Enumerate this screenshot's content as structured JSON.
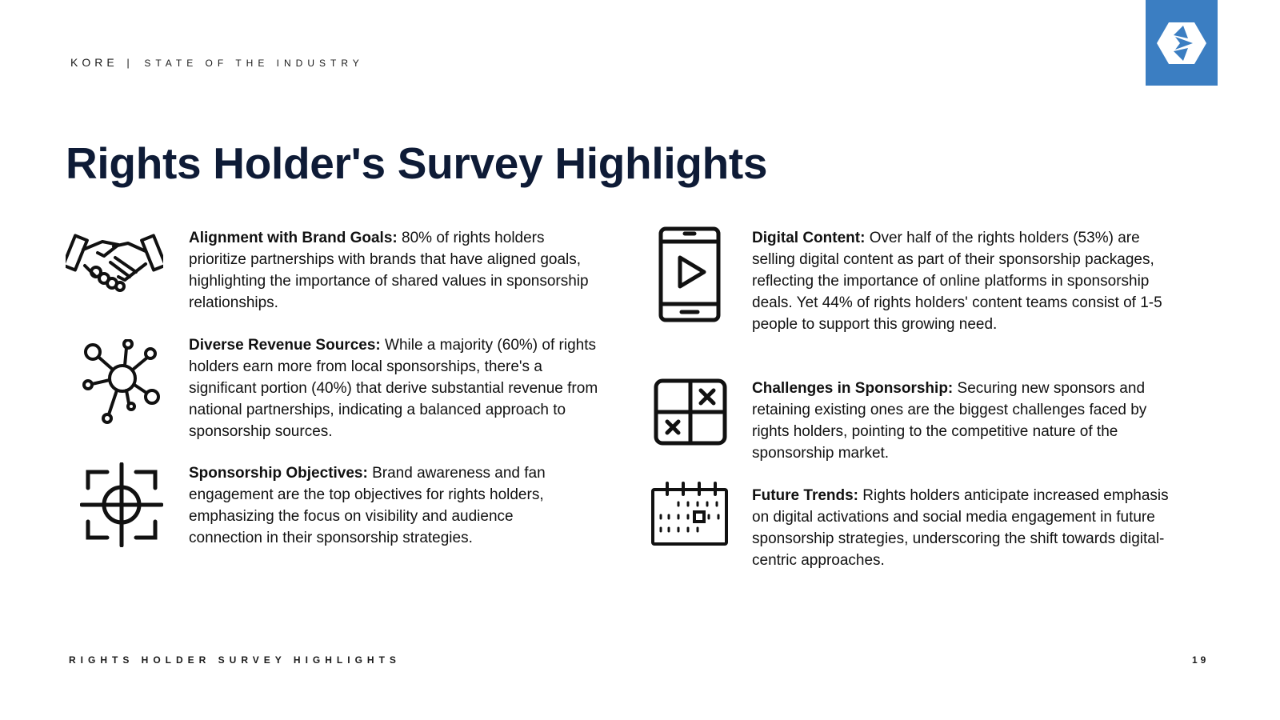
{
  "header": {
    "brand": "KORE",
    "separator": "|",
    "subtitle": "STATE OF THE INDUSTRY"
  },
  "logo": {
    "icon": "kore-logo-icon",
    "background": "#3b7ec2"
  },
  "title": "Rights Holder's Survey Highlights",
  "highlights": [
    {
      "heading": "Alignment with Brand Goals:",
      "body": " 80% of rights holders prioritize partnerships with brands that have aligned goals, highlighting the importance of shared values in sponsorship relationships.",
      "icon": "handshake-icon"
    },
    {
      "heading": "Diverse Revenue Sources:",
      "body": " While a majority (60%) of rights holders earn more from local sponsorships, there's a significant portion (40%) that derive substantial revenue from national partnerships, indicating a balanced approach to sponsorship sources.",
      "icon": "network-nodes-icon"
    },
    {
      "heading": "Sponsorship Objectives:",
      "body": " Brand awareness and fan engagement are the top objectives for rights holders, emphasizing the focus on visibility and audience connection in their sponsorship strategies.",
      "icon": "target-crosshair-icon"
    },
    {
      "heading": "Digital Content:",
      "body": " Over half of the rights holders (53%) are selling digital content as part of their sponsorship packages, reflecting the importance of online platforms in sponsorship deals. Yet 44% of rights holders' content teams consist of 1-5 people to support this growing need.",
      "icon": "mobile-video-icon"
    },
    {
      "heading": "Challenges in Sponsorship:",
      "body": " Securing new sponsors and retaining existing ones are the biggest challenges faced by rights holders, pointing to the competitive nature of the sponsorship market.",
      "icon": "grid-x-icon"
    },
    {
      "heading": "Future Trends:",
      "body": " Rights holders anticipate increased emphasis on digital activations and social media engagement in future sponsorship strategies, underscoring the shift towards digital-centric approaches.",
      "icon": "calendar-icon"
    }
  ],
  "footer": {
    "section": "RIGHTS HOLDER SURVEY HIGHLIGHTS",
    "page_number": "19"
  }
}
